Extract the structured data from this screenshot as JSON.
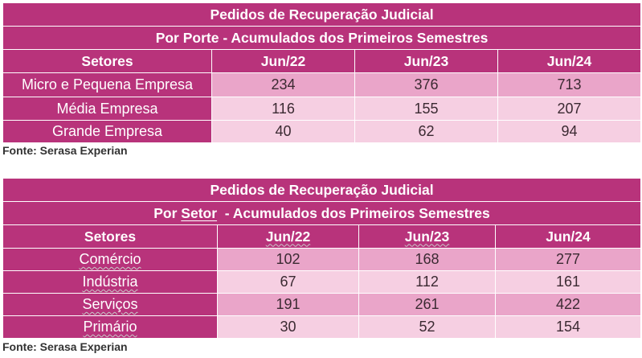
{
  "table1": {
    "title": "Pedidos de Recuperação Judicial",
    "subtitle": "Por Porte - Acumulados dos Primeiros Semestres",
    "header": {
      "label": "Setores",
      "columns": [
        "Jun/22",
        "Jun/23",
        "Jun/24"
      ]
    },
    "rows": [
      {
        "label": "Micro e Pequena Empresa",
        "values": [
          "234",
          "376",
          "713"
        ]
      },
      {
        "label": "Média Empresa",
        "values": [
          "116",
          "155",
          "207"
        ]
      },
      {
        "label": "Grande Empresa",
        "values": [
          "40",
          "62",
          "94"
        ]
      }
    ],
    "source": "Fonte: Serasa Experian"
  },
  "table2": {
    "title": "Pedidos de Recuperação Judicial",
    "subtitle_pre": "Por ",
    "subtitle_word": "Setor",
    "subtitle_post": "  - Acumulados dos Primeiros Semestres",
    "header": {
      "label": "Setores",
      "columns": [
        "Jun/22",
        "Jun/23",
        "Jun/24"
      ]
    },
    "rows": [
      {
        "label": "Comércio",
        "values": [
          "102",
          "168",
          "277"
        ]
      },
      {
        "label": "Indústria",
        "values": [
          "67",
          "112",
          "161"
        ]
      },
      {
        "label": "Serviços",
        "values": [
          "191",
          "261",
          "422"
        ]
      },
      {
        "label": "Primário",
        "values": [
          "30",
          "52",
          "154"
        ]
      }
    ],
    "source": "Fonte: Serasa Experian"
  },
  "colors": {
    "header": "#b8337b",
    "row_dark": "#eaa5c9",
    "row_light": "#f6cfe2"
  }
}
